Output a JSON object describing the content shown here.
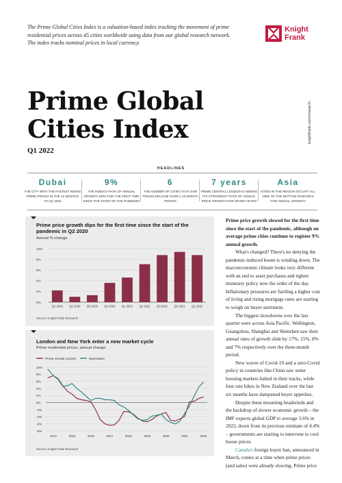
{
  "intro": "The Prime Global Cities Index is a valuation-based index tracking the movement of prime residential prices across 45 cities worldwide using data from our global research network. The index tracks nominal prices in local currency.",
  "logo": {
    "line1": "Knight",
    "line2": "Frank",
    "color": "#c41b3f"
  },
  "side_url": "knightfrank.com/research",
  "title_line1": "Prime Global",
  "title_line2": "Cities Index",
  "subtitle": "Q1 2022",
  "headlines": {
    "title": "HEADLINES",
    "items": [
      {
        "value": "Dubai",
        "text": "THE CITY WITH THE FASTEST RISING PRIME PRICES IN THE 12 MONTHS TO Q1 2022"
      },
      {
        "value": "9%",
        "text": "THE INDEX'S RATE OF ANNUAL GROWTH DIPS FOR THE FIRST TIME SINCE THE START OF THE PANDEMIC"
      },
      {
        "value": "6",
        "text": "THE NUMBER OF CITIES THAT SAW PRICES DECLINE OVER A 12-MONTH PERIOD"
      },
      {
        "value": "7 years",
        "text": "PRIME CENTRAL LONDON IS SEEING ITS STRONGEST RATE OF ANNUAL PRICE GROWTH FOR SEVEN YEARS"
      },
      {
        "value": "Asia",
        "text": "CITIES IN THE REGION OCCUPY ALL NINE OF THE BOTTOM RANKINGS FOR ANNUAL GROWTH"
      }
    ]
  },
  "chart_data": [
    {
      "type": "bar",
      "title": "Prime price growth dips for the first time since the start of the pandemic in Q2 2020",
      "ylabel": "Annual % change",
      "categories": [
        "Q1 2020",
        "Q2 2020",
        "Q3 2020",
        "Q4 2020",
        "Q1 2021",
        "Q2 2021",
        "Q3 2021",
        "Q4 2021",
        "Q1 2022"
      ],
      "values": [
        2.2,
        1.0,
        1.3,
        3.6,
        4.6,
        7.1,
        8.8,
        9.4,
        8.8
      ],
      "yticks": [
        "10%",
        "8%",
        "6%",
        "4%",
        "2%",
        "0%"
      ],
      "ylim": [
        0,
        10
      ],
      "bar_color": "#8b2f48",
      "source": "Source: Knight Frank Research"
    },
    {
      "type": "line",
      "title": "London and New York enter a new market cycle",
      "ylabel": "Prime residential prices, annual change",
      "xticks": [
        "2014",
        "2015",
        "2016",
        "2017",
        "2018",
        "2019",
        "2020",
        "2021",
        "2022"
      ],
      "yticks": [
        "10%",
        "8%",
        "6%",
        "4%",
        "2%",
        "0%",
        "-2%",
        "-4%",
        "-6%",
        "-8%"
      ],
      "ylim": [
        -8,
        10
      ],
      "xlim": [
        2013.6,
        2022.2
      ],
      "series": [
        {
          "name": "Prime central London",
          "color": "#8b2f48",
          "x": [
            2013.7,
            2014.0,
            2014.25,
            2014.5,
            2014.75,
            2015.0,
            2015.25,
            2015.5,
            2015.75,
            2016.0,
            2016.25,
            2016.5,
            2016.75,
            2017.0,
            2017.25,
            2017.5,
            2017.75,
            2018.0,
            2018.25,
            2018.5,
            2018.75,
            2019.0,
            2019.25,
            2019.5,
            2019.75,
            2020.0,
            2020.25,
            2020.5,
            2020.75,
            2021.0,
            2021.25,
            2021.5,
            2021.75,
            2022.0
          ],
          "values": [
            7.0,
            7.6,
            6.8,
            4.8,
            3.2,
            2.4,
            1.2,
            0.8,
            0.6,
            0.2,
            -2.0,
            -4.8,
            -6.0,
            -6.4,
            -6.3,
            -5.0,
            -2.5,
            -2.6,
            -3.2,
            -4.4,
            -5.2,
            -5.4,
            -4.8,
            -3.8,
            -3.2,
            -2.8,
            -5.0,
            -5.2,
            -4.6,
            -3.8,
            0.2,
            0.4,
            1.2,
            1.6
          ]
        },
        {
          "name": "Manhattan",
          "color": "#2c8a85",
          "x": [
            2013.7,
            2014.0,
            2014.25,
            2014.5,
            2014.75,
            2015.0,
            2015.25,
            2015.5,
            2015.75,
            2016.0,
            2016.25,
            2016.5,
            2016.75,
            2017.0,
            2017.25,
            2017.5,
            2017.75,
            2018.0,
            2018.25,
            2018.5,
            2018.75,
            2019.0,
            2019.25,
            2019.5,
            2019.75,
            2020.0,
            2020.25,
            2020.5,
            2020.75,
            2021.0,
            2021.25,
            2021.5,
            2021.75,
            2022.0
          ],
          "values": [
            9.5,
            7.6,
            6.6,
            4.6,
            4.8,
            5.4,
            4.0,
            3.0,
            1.8,
            0.6,
            1.2,
            1.2,
            0.8,
            0.8,
            0.6,
            -0.6,
            -1.2,
            -2.2,
            -3.4,
            -4.6,
            -5.0,
            -4.8,
            -3.8,
            -3.6,
            -3.2,
            -4.8,
            -5.6,
            -6.0,
            -5.2,
            -3.0,
            -1.0,
            1.8,
            4.4,
            5.8
          ]
        }
      ],
      "source": "Source: Knight Frank Research"
    }
  ],
  "body": {
    "p1_lead": "Prime price growth slowed for the first time since the start of the pandemic, although on average prime cities continue to register 9% annual growth.",
    "p2": "What's changed? There's no denying the pandemic-induced boom is winding down. The macroeconomic climate looks very different with an end to asset purchases and tighter monetary policy now the order of the day. Inflationary pressures are fuelling a higher cost of living and rising mortgage rates are starting to weigh on buyer sentiment.",
    "p3": "The biggest slowdowns over the last quarter were across Asia Pacific. Wellington, Guangzhou, Shanghai and Shenzhen saw their annual rates of growth slide by 17%, 15%, 8% and 7% respectively over the three-month period.",
    "p4": "New waves of Covid-19 and a zero-Covid policy in countries like China saw some housing markets halted in their tracks, while four rate hikes in New Zealand over the last six months have dampened buyer appetites.",
    "p5": "Despite these mounting headwinds and the backdrop of slower economic growth – the IMF expects global GDP to average 3.6% in 2022, down from its previous estimate of 4.4% – governments are starting to intervene to cool house prices.",
    "p6_link": "Canada's",
    "p6_rest": " foreign buyer ban, announced in March, comes at a time when prime prices (and sales) were already slowing. Prime price"
  }
}
